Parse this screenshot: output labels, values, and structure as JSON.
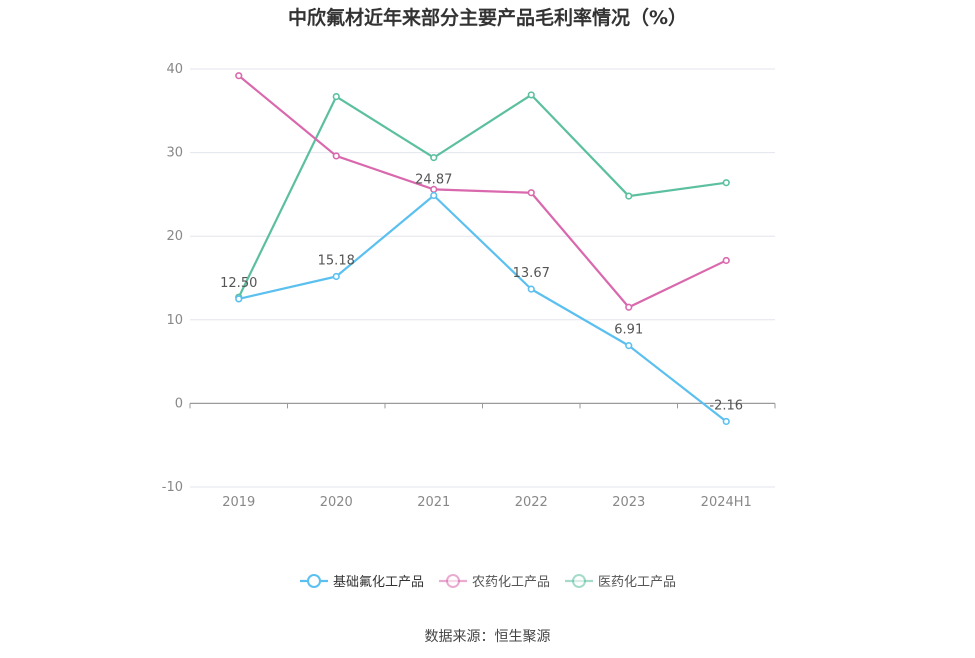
{
  "chart_data": {
    "type": "line",
    "title": "中欣氟材近年来部分主要产品毛利率情况（%）",
    "categories": [
      "2019",
      "2020",
      "2021",
      "2022",
      "2023",
      "2024H1"
    ],
    "ylim": [
      -10,
      40
    ],
    "yticks": [
      -10,
      0,
      10,
      20,
      30,
      40
    ],
    "grid": true,
    "legend_position": "bottom",
    "series": [
      {
        "name": "基础氟化工产品",
        "color": "#5bc0f0",
        "values": [
          12.5,
          15.18,
          24.87,
          13.67,
          6.91,
          -2.16
        ],
        "labels": [
          "12.50",
          "15.18",
          "24.87",
          "13.67",
          "6.91",
          "-2.16"
        ]
      },
      {
        "name": "农药化工产品",
        "color": "#d968ad",
        "values": [
          39.2,
          29.6,
          25.6,
          25.2,
          11.5,
          17.1
        ],
        "labels": []
      },
      {
        "name": "医药化工产品",
        "color": "#5bbfa0",
        "values": [
          12.7,
          36.7,
          29.4,
          36.9,
          24.8,
          26.4
        ],
        "labels": []
      }
    ]
  },
  "source": "数据来源：恒生聚源"
}
